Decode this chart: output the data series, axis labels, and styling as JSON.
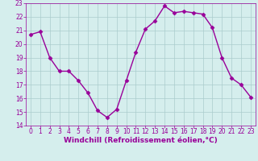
{
  "x": [
    0,
    1,
    2,
    3,
    4,
    5,
    6,
    7,
    8,
    9,
    10,
    11,
    12,
    13,
    14,
    15,
    16,
    17,
    18,
    19,
    20,
    21,
    22,
    23
  ],
  "y": [
    20.7,
    20.9,
    19.0,
    18.0,
    18.0,
    17.3,
    16.4,
    15.1,
    14.6,
    15.2,
    17.3,
    19.4,
    21.1,
    21.7,
    22.8,
    22.3,
    22.4,
    22.3,
    22.2,
    21.2,
    19.0,
    17.5,
    17.0,
    16.1
  ],
  "line_color": "#990099",
  "marker": "D",
  "marker_size": 2.5,
  "bg_color": "#d5eeed",
  "grid_color": "#aacccc",
  "xlabel": "Windchill (Refroidissement éolien,°C)",
  "xlabel_color": "#990099",
  "tick_color": "#990099",
  "ylim": [
    14,
    23
  ],
  "xlim_min": -0.5,
  "xlim_max": 23.5,
  "yticks": [
    14,
    15,
    16,
    17,
    18,
    19,
    20,
    21,
    22,
    23
  ],
  "xticks": [
    0,
    1,
    2,
    3,
    4,
    5,
    6,
    7,
    8,
    9,
    10,
    11,
    12,
    13,
    14,
    15,
    16,
    17,
    18,
    19,
    20,
    21,
    22,
    23
  ],
  "tick_fontsize": 5.5,
  "xlabel_fontsize": 6.5,
  "linewidth": 1.0
}
